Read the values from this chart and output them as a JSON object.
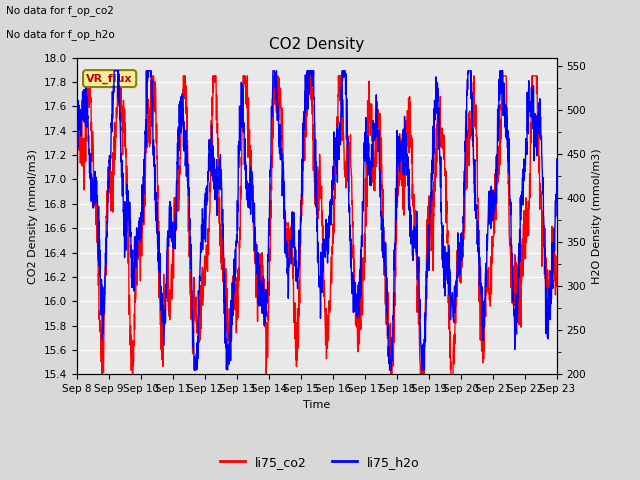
{
  "title": "CO2 Density",
  "xlabel": "Time",
  "ylabel_left": "CO2 Density (mmol/m3)",
  "ylabel_right": "H2O Density (mmol/m3)",
  "text_top_left_line1": "No data for f_op_co2",
  "text_top_left_line2": "No data for f_op_h2o",
  "legend_box_text": "VR_flux",
  "legend_box_color": "#f5f0a0",
  "legend_box_edge": "#8B8000",
  "legend_box_text_color": "#cc0000",
  "ylim_left": [
    15.4,
    18.0
  ],
  "ylim_right": [
    200,
    560
  ],
  "yticks_left": [
    15.4,
    15.6,
    15.8,
    16.0,
    16.2,
    16.4,
    16.6,
    16.8,
    17.0,
    17.2,
    17.4,
    17.6,
    17.8,
    18.0
  ],
  "yticks_right": [
    200,
    250,
    300,
    350,
    400,
    450,
    500,
    550
  ],
  "x_tick_labels": [
    "Sep 8",
    "Sep 9",
    "Sep 10",
    "Sep 11",
    "Sep 12",
    "Sep 13",
    "Sep 14",
    "Sep 15",
    "Sep 16",
    "Sep 17",
    "Sep 18",
    "Sep 19",
    "Sep 20",
    "Sep 21",
    "Sep 22",
    "Sep 23"
  ],
  "co2_color": "#ff0000",
  "h2o_color": "#0000ff",
  "fig_bg_color": "#d8d8d8",
  "plot_bg": "#e8e8e8",
  "grid_color": "#ffffff",
  "linewidth": 1.0,
  "legend_entries": [
    "li75_co2",
    "li75_h2o"
  ],
  "legend_colors": [
    "#ff0000",
    "#0000ff"
  ]
}
